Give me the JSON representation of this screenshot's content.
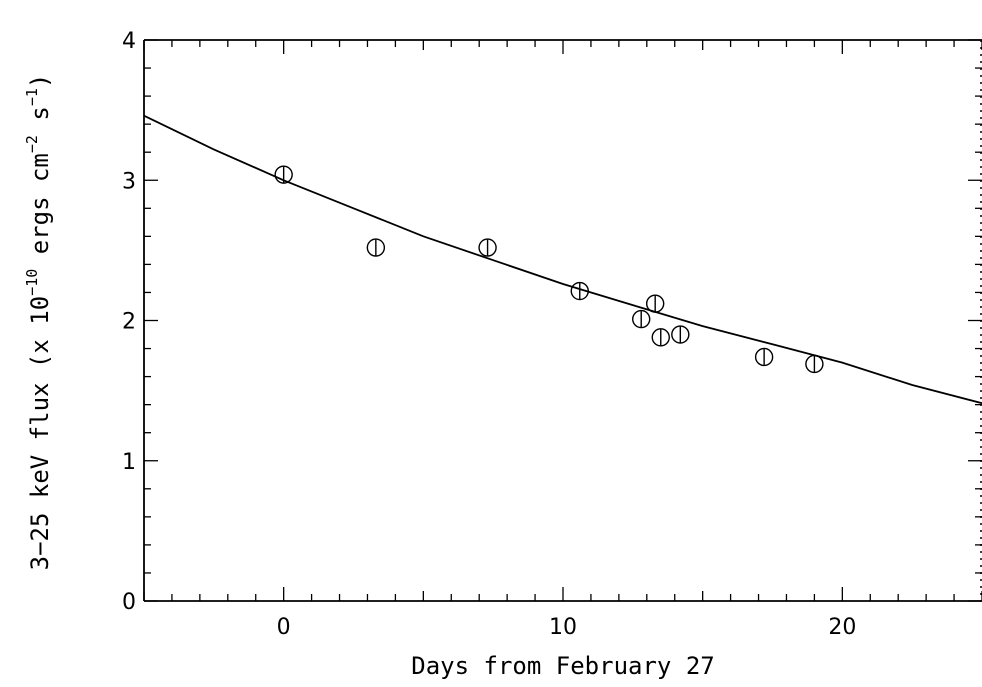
{
  "chart_data": {
    "type": "scatter",
    "title": "",
    "xlabel": "Days from February 27",
    "ylabel": {
      "parts": [
        {
          "text": "3−25 keV flux (x 10"
        },
        {
          "text": "−10",
          "sup": true
        },
        {
          "text": " ergs cm"
        },
        {
          "text": "−2",
          "sup": true
        },
        {
          "text": " s"
        },
        {
          "text": "−1",
          "sup": true
        },
        {
          "text": ")"
        }
      ]
    },
    "xlim": [
      -5,
      25
    ],
    "ylim": [
      0,
      4
    ],
    "x_ticks": [
      0,
      10,
      20
    ],
    "x_tick_labels": [
      "0",
      "10",
      "20"
    ],
    "y_ticks": [
      0,
      1,
      2,
      3,
      4
    ],
    "y_tick_labels": [
      "0",
      "1",
      "2",
      "3",
      "4"
    ],
    "grid": false,
    "series": [
      {
        "type": "scatter",
        "marker": "circle-with-errorbar",
        "points": [
          {
            "x": 0.0,
            "y": 3.04
          },
          {
            "x": 3.3,
            "y": 2.52
          },
          {
            "x": 7.3,
            "y": 2.52
          },
          {
            "x": 10.6,
            "y": 2.21
          },
          {
            "x": 12.8,
            "y": 2.01
          },
          {
            "x": 13.3,
            "y": 2.12
          },
          {
            "x": 13.5,
            "y": 1.88
          },
          {
            "x": 14.2,
            "y": 1.9
          },
          {
            "x": 17.2,
            "y": 1.74
          },
          {
            "x": 19.0,
            "y": 1.69
          }
        ]
      },
      {
        "type": "line",
        "fit": "exponential decay",
        "x": [
          -5,
          -2.5,
          0,
          2.5,
          5,
          7.5,
          10,
          12.5,
          15,
          17.5,
          20,
          22.5,
          25
        ],
        "y": [
          3.46,
          3.22,
          3.0,
          2.8,
          2.6,
          2.43,
          2.26,
          2.11,
          1.96,
          1.83,
          1.7,
          1.54,
          1.41
        ]
      }
    ]
  }
}
